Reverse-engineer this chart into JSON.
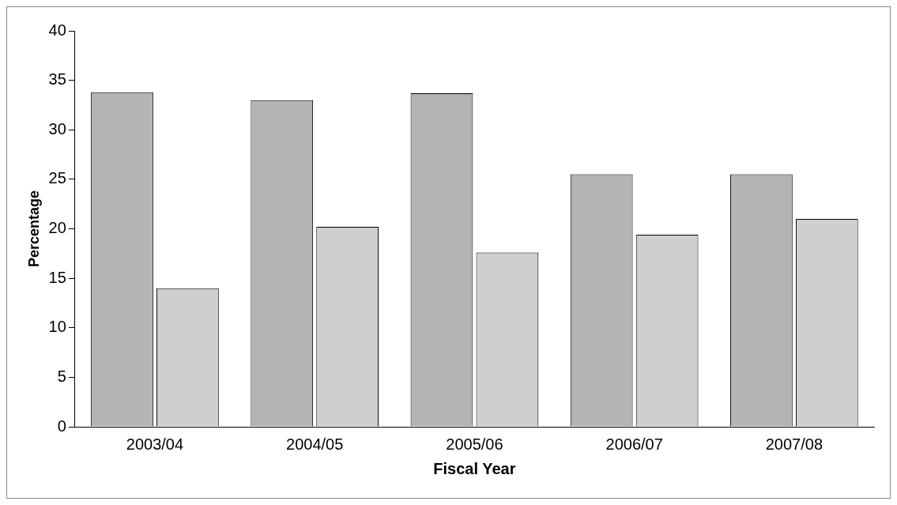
{
  "chart_data": {
    "type": "bar",
    "xlabel": "Fiscal Year",
    "ylabel": "Percentage",
    "categories": [
      "2003/04",
      "2004/05",
      "2005/06",
      "2006/07",
      "2007/08"
    ],
    "series": [
      {
        "color": "#b4b4b4",
        "values": [
          33.8,
          33.0,
          33.7,
          25.5,
          25.5
        ]
      },
      {
        "color": "#cfcfcf",
        "values": [
          14.0,
          20.2,
          17.6,
          19.4,
          21.0
        ]
      }
    ],
    "ylim": [
      0,
      40
    ],
    "yticks": [
      0,
      5,
      10,
      15,
      20,
      25,
      30,
      35,
      40
    ],
    "grid": false,
    "legend": false
  }
}
